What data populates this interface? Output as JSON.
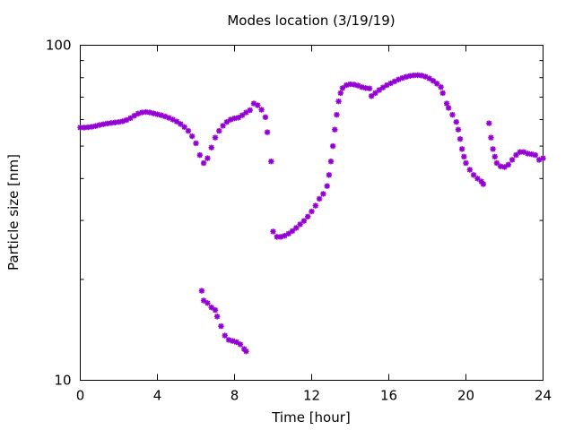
{
  "chart_data": {
    "type": "scatter",
    "title": "Modes location (3/19/19)",
    "xlabel": "Time [hour]",
    "ylabel": "Particle size [nm]",
    "xlim": [
      0,
      24
    ],
    "ylim": [
      10,
      100
    ],
    "yscale": "log",
    "x_ticks": [
      0,
      4,
      8,
      12,
      16,
      20,
      24
    ],
    "x_tick_labels": [
      "0",
      "4",
      "8",
      "12",
      "16",
      "20",
      "24"
    ],
    "y_ticks": [
      10,
      100
    ],
    "y_tick_labels": [
      "10",
      "100"
    ],
    "grid": false,
    "marker_color": "#9400d3",
    "marker": "asterisk",
    "points": [
      [
        0.0,
        56.8
      ],
      [
        0.2,
        56.8
      ],
      [
        0.4,
        56.9
      ],
      [
        0.6,
        57.1
      ],
      [
        0.8,
        57.4
      ],
      [
        1.0,
        57.8
      ],
      [
        1.2,
        58.1
      ],
      [
        1.4,
        58.4
      ],
      [
        1.6,
        58.6
      ],
      [
        1.8,
        58.8
      ],
      [
        2.0,
        59.0
      ],
      [
        2.2,
        59.3
      ],
      [
        2.4,
        59.8
      ],
      [
        2.6,
        60.6
      ],
      [
        2.8,
        61.6
      ],
      [
        3.0,
        62.5
      ],
      [
        3.2,
        63.0
      ],
      [
        3.4,
        63.2
      ],
      [
        3.6,
        63.0
      ],
      [
        3.8,
        62.6
      ],
      [
        4.0,
        62.2
      ],
      [
        4.2,
        61.8
      ],
      [
        4.4,
        61.3
      ],
      [
        4.6,
        60.7
      ],
      [
        4.8,
        60.0
      ],
      [
        5.0,
        59.2
      ],
      [
        5.2,
        58.2
      ],
      [
        5.4,
        57.0
      ],
      [
        5.6,
        55.5
      ],
      [
        5.8,
        53.5
      ],
      [
        6.0,
        51.0
      ],
      [
        6.2,
        47.0
      ],
      [
        6.4,
        44.5
      ],
      [
        6.6,
        46.0
      ],
      [
        6.8,
        49.5
      ],
      [
        7.0,
        53.0
      ],
      [
        7.2,
        55.5
      ],
      [
        7.4,
        57.5
      ],
      [
        7.6,
        59.0
      ],
      [
        7.8,
        60.0
      ],
      [
        8.0,
        60.5
      ],
      [
        8.2,
        60.8
      ],
      [
        8.4,
        61.8
      ],
      [
        8.6,
        63.0
      ],
      [
        8.8,
        64.0
      ],
      [
        9.0,
        67.0
      ],
      [
        9.2,
        66.2
      ],
      [
        9.4,
        64.2
      ],
      [
        9.6,
        61.0
      ],
      [
        9.7,
        55.0
      ],
      [
        9.9,
        45.0
      ],
      [
        6.3,
        18.5
      ],
      [
        6.4,
        17.3
      ],
      [
        6.6,
        17.0
      ],
      [
        6.8,
        16.5
      ],
      [
        7.0,
        16.2
      ],
      [
        7.1,
        15.5
      ],
      [
        7.3,
        14.5
      ],
      [
        7.5,
        13.6
      ],
      [
        7.7,
        13.2
      ],
      [
        7.9,
        13.1
      ],
      [
        8.1,
        13.0
      ],
      [
        8.3,
        12.8
      ],
      [
        8.5,
        12.4
      ],
      [
        8.6,
        12.2
      ],
      [
        10.0,
        27.8
      ],
      [
        10.2,
        26.8
      ],
      [
        10.4,
        26.8
      ],
      [
        10.6,
        27.0
      ],
      [
        10.8,
        27.4
      ],
      [
        11.0,
        27.9
      ],
      [
        11.2,
        28.5
      ],
      [
        11.4,
        29.2
      ],
      [
        11.6,
        29.9
      ],
      [
        11.8,
        30.8
      ],
      [
        12.0,
        31.9
      ],
      [
        12.2,
        33.2
      ],
      [
        12.4,
        34.8
      ],
      [
        12.6,
        36.0
      ],
      [
        12.8,
        38.0
      ],
      [
        12.9,
        41.0
      ],
      [
        13.0,
        45.0
      ],
      [
        13.1,
        50.0
      ],
      [
        13.2,
        56.0
      ],
      [
        13.3,
        62.0
      ],
      [
        13.4,
        68.0
      ],
      [
        13.5,
        72.0
      ],
      [
        13.6,
        74.5
      ],
      [
        13.8,
        76.0
      ],
      [
        14.0,
        76.5
      ],
      [
        14.2,
        76.3
      ],
      [
        14.4,
        75.8
      ],
      [
        14.6,
        75.0
      ],
      [
        14.8,
        74.5
      ],
      [
        15.0,
        74.3
      ],
      [
        15.1,
        70.5
      ],
      [
        15.3,
        72.0
      ],
      [
        15.5,
        73.5
      ],
      [
        15.7,
        74.8
      ],
      [
        15.9,
        76.0
      ],
      [
        16.1,
        77.0
      ],
      [
        16.3,
        78.0
      ],
      [
        16.5,
        79.0
      ],
      [
        16.7,
        79.8
      ],
      [
        16.9,
        80.5
      ],
      [
        17.1,
        81.0
      ],
      [
        17.3,
        81.3
      ],
      [
        17.5,
        81.4
      ],
      [
        17.7,
        81.2
      ],
      [
        17.9,
        80.6
      ],
      [
        18.1,
        79.6
      ],
      [
        18.3,
        78.3
      ],
      [
        18.5,
        76.8
      ],
      [
        18.7,
        75.0
      ],
      [
        18.8,
        72.0
      ],
      [
        19.0,
        67.0
      ],
      [
        19.1,
        65.0
      ],
      [
        19.3,
        62.0
      ],
      [
        19.5,
        59.0
      ],
      [
        19.6,
        56.0
      ],
      [
        19.7,
        52.5
      ],
      [
        19.8,
        49.0
      ],
      [
        19.9,
        46.5
      ],
      [
        20.0,
        44.5
      ],
      [
        20.2,
        42.5
      ],
      [
        20.4,
        41.0
      ],
      [
        20.6,
        40.0
      ],
      [
        20.8,
        39.2
      ],
      [
        20.9,
        38.5
      ],
      [
        21.2,
        58.5
      ],
      [
        21.3,
        53.0
      ],
      [
        21.4,
        49.0
      ],
      [
        21.5,
        46.5
      ],
      [
        21.6,
        44.5
      ],
      [
        21.8,
        43.5
      ],
      [
        22.0,
        43.3
      ],
      [
        22.2,
        44.0
      ],
      [
        22.4,
        45.5
      ],
      [
        22.6,
        47.0
      ],
      [
        22.8,
        48.0
      ],
      [
        23.0,
        48.0
      ],
      [
        23.2,
        47.5
      ],
      [
        23.4,
        47.3
      ],
      [
        23.6,
        47.0
      ],
      [
        23.8,
        45.5
      ],
      [
        24.0,
        46.0
      ]
    ]
  }
}
